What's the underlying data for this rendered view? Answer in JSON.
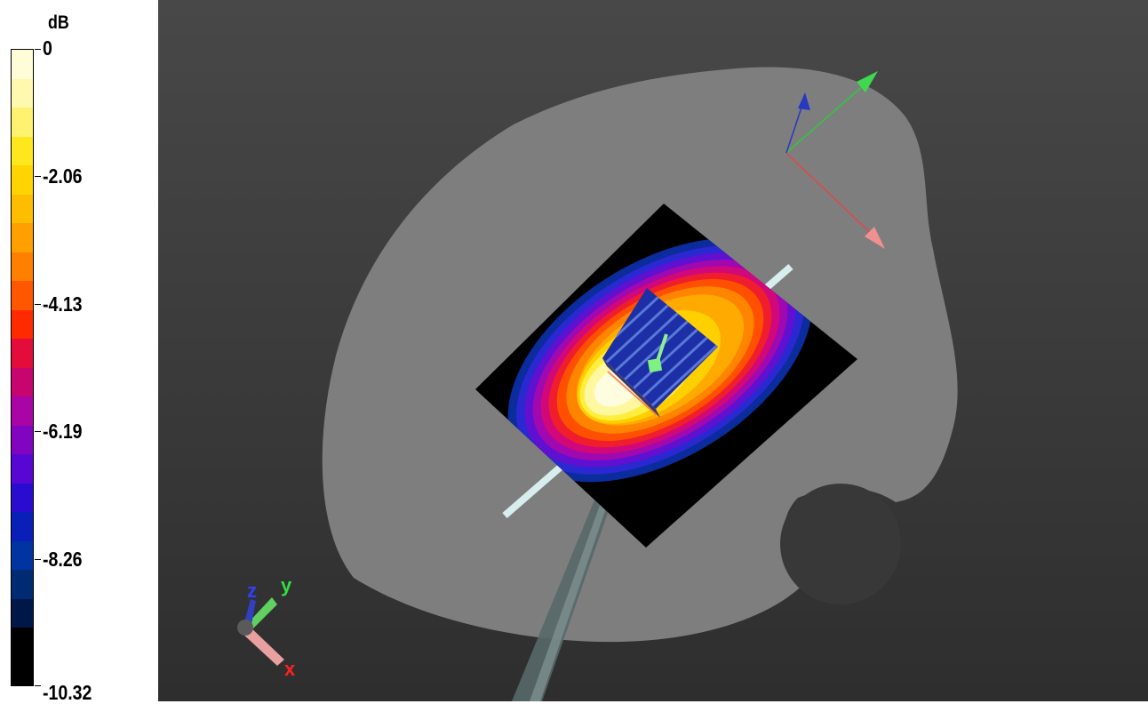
{
  "legend": {
    "unit": "dB",
    "ticks": [
      {
        "label": "0",
        "value": 0
      },
      {
        "label": "-2.06",
        "value": -2.06
      },
      {
        "label": "-4.13",
        "value": -4.13
      },
      {
        "label": "-6.19",
        "value": -6.19
      },
      {
        "label": "-8.26",
        "value": -8.26
      },
      {
        "label": "-10.32",
        "value": -10.32
      }
    ],
    "range": [
      -10.32,
      0
    ],
    "colors": [
      "#fffdd8",
      "#fff9b0",
      "#fff270",
      "#ffe71e",
      "#ffd400",
      "#ffbd00",
      "#ffa000",
      "#ff7f00",
      "#ff5700",
      "#ff2a00",
      "#e30c3a",
      "#c8046e",
      "#a904a6",
      "#8004c0",
      "#5806d4",
      "#2a0cd0",
      "#0a1eb8",
      "#0034a0",
      "#002b72",
      "#001848",
      "#000000",
      "#000000"
    ]
  },
  "scene": {
    "axes_triad": {
      "x_label": "x",
      "y_label": "y",
      "z_label": "z"
    },
    "colors": {
      "background_top": "#484848",
      "background_bottom": "#2e2e2e",
      "phantom": "#7e7e7e",
      "x_axis": "#e04848",
      "y_axis": "#30c840",
      "z_axis": "#2838c0"
    }
  }
}
